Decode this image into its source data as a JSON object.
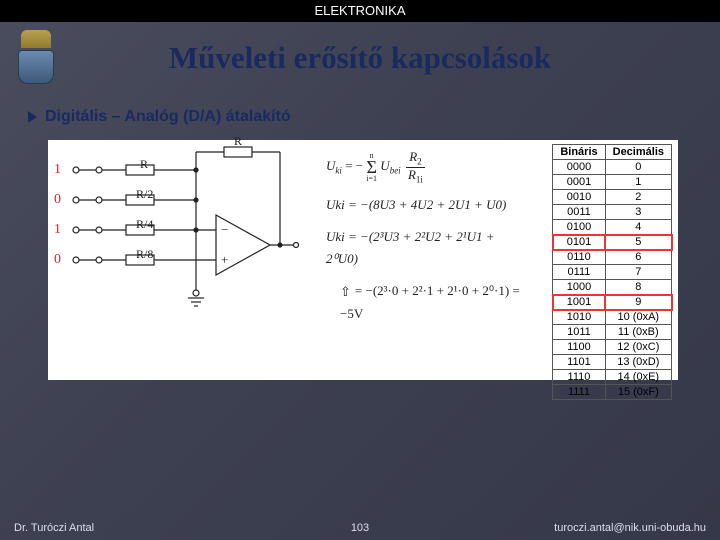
{
  "topbar": "ELEKTRONIKA",
  "title": "Műveleti erősítő kapcsolások",
  "bullet": "Digitális – Analóg (D/A) átalakító",
  "inputs": {
    "bits": [
      "1",
      "0",
      "1",
      "0"
    ],
    "res": [
      "R",
      "R/2",
      "R/4",
      "R/8"
    ],
    "fb": "R"
  },
  "eqs": {
    "e1a": "U",
    "e1b": "ki",
    "e1c": " = −",
    "e1d": "Σ",
    "e1e": " U",
    "e1f": "bei",
    "e1g": " · R",
    "e1h": "2",
    "e1i": " / R",
    "e1j": "1i",
    "sumtop": "n",
    "sumbot": "i=1",
    "e2": "Uki = −(8U3 + 4U2 + 2U1 + U0)",
    "e3": "Uki = −(2³U3 + 2²U2 + 2¹U1 + 2⁰U0)",
    "e4": "= −(2³·0 + 2²·1 + 2¹·0 + 2⁰·1) = −5V"
  },
  "table": {
    "head": [
      "Bináris",
      "Decimális"
    ],
    "rows": [
      [
        "0000",
        "0"
      ],
      [
        "0001",
        "1"
      ],
      [
        "0010",
        "2"
      ],
      [
        "0011",
        "3"
      ],
      [
        "0100",
        "4"
      ],
      [
        "0101",
        "5"
      ],
      [
        "0110",
        "6"
      ],
      [
        "0111",
        "7"
      ],
      [
        "1000",
        "8"
      ],
      [
        "1001",
        "9"
      ],
      [
        "1010",
        "10 (0xA)"
      ],
      [
        "1011",
        "11 (0xB)"
      ],
      [
        "1100",
        "12 (0xC)"
      ],
      [
        "1101",
        "13 (0xD)"
      ],
      [
        "1110",
        "14 (0xE)"
      ],
      [
        "1111",
        "15 (0xF)"
      ]
    ],
    "highlight": [
      5,
      9
    ]
  },
  "footer": {
    "left": "Dr. Turóczi Antal",
    "page": "103",
    "right": "turoczi.antal@nik.uni-obuda.hu"
  }
}
